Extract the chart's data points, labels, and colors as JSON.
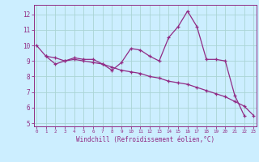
{
  "xlabel": "Windchill (Refroidissement éolien,°C)",
  "x_hours": [
    0,
    1,
    2,
    3,
    4,
    5,
    6,
    7,
    8,
    9,
    10,
    11,
    12,
    13,
    14,
    15,
    16,
    17,
    18,
    19,
    20,
    21,
    22,
    23
  ],
  "line1_y": [
    10.0,
    9.3,
    8.8,
    9.0,
    9.2,
    9.1,
    9.1,
    8.8,
    8.4,
    8.9,
    9.8,
    9.7,
    9.3,
    9.0,
    10.5,
    11.2,
    12.2,
    11.2,
    9.1,
    9.1,
    9.0,
    6.8,
    5.5,
    null
  ],
  "line2_y": [
    null,
    9.3,
    9.2,
    9.0,
    9.1,
    9.0,
    8.9,
    8.8,
    8.6,
    8.4,
    8.3,
    8.2,
    8.0,
    7.9,
    7.7,
    7.6,
    7.5,
    7.3,
    7.1,
    6.9,
    6.7,
    6.4,
    6.1,
    5.5
  ],
  "line_color": "#912b85",
  "bg_color": "#cceeff",
  "grid_color": "#aad4d4",
  "ylim": [
    4.8,
    12.6
  ],
  "yticks": [
    5,
    6,
    7,
    8,
    9,
    10,
    11,
    12
  ],
  "xlim": [
    -0.3,
    23.3
  ],
  "xticks": [
    0,
    1,
    2,
    3,
    4,
    5,
    6,
    7,
    8,
    9,
    10,
    11,
    12,
    13,
    14,
    15,
    16,
    17,
    18,
    19,
    20,
    21,
    22,
    23
  ]
}
